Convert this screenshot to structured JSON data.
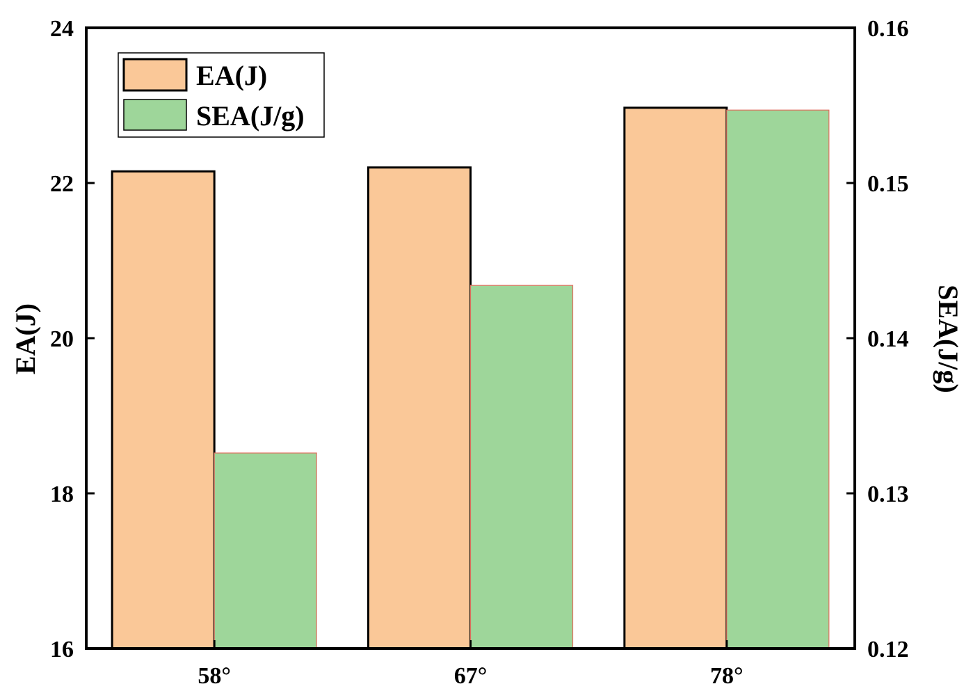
{
  "chart_data": {
    "type": "bar",
    "categories": [
      "58°",
      "67°",
      "78°"
    ],
    "series": [
      {
        "name": "EA(J)",
        "axis": "left",
        "values": [
          22.15,
          22.2,
          22.97
        ],
        "color": "#FAC898",
        "stroke": "#000000"
      },
      {
        "name": "SEA(J/g)",
        "axis": "right",
        "values": [
          0.1326,
          0.1434,
          0.1547
        ],
        "color": "#9ED69A",
        "stroke": "#E07060"
      }
    ],
    "ylabel": "EA(J)",
    "y2label": "SEA(J/g)",
    "ylim": [
      16,
      24
    ],
    "y2lim": [
      0.12,
      0.16
    ],
    "yticks": [
      "16",
      "18",
      "20",
      "22",
      "24"
    ],
    "y2ticks": [
      "0.12",
      "0.13",
      "0.14",
      "0.15",
      "0.16"
    ],
    "legend": "top-left",
    "grid": false
  }
}
